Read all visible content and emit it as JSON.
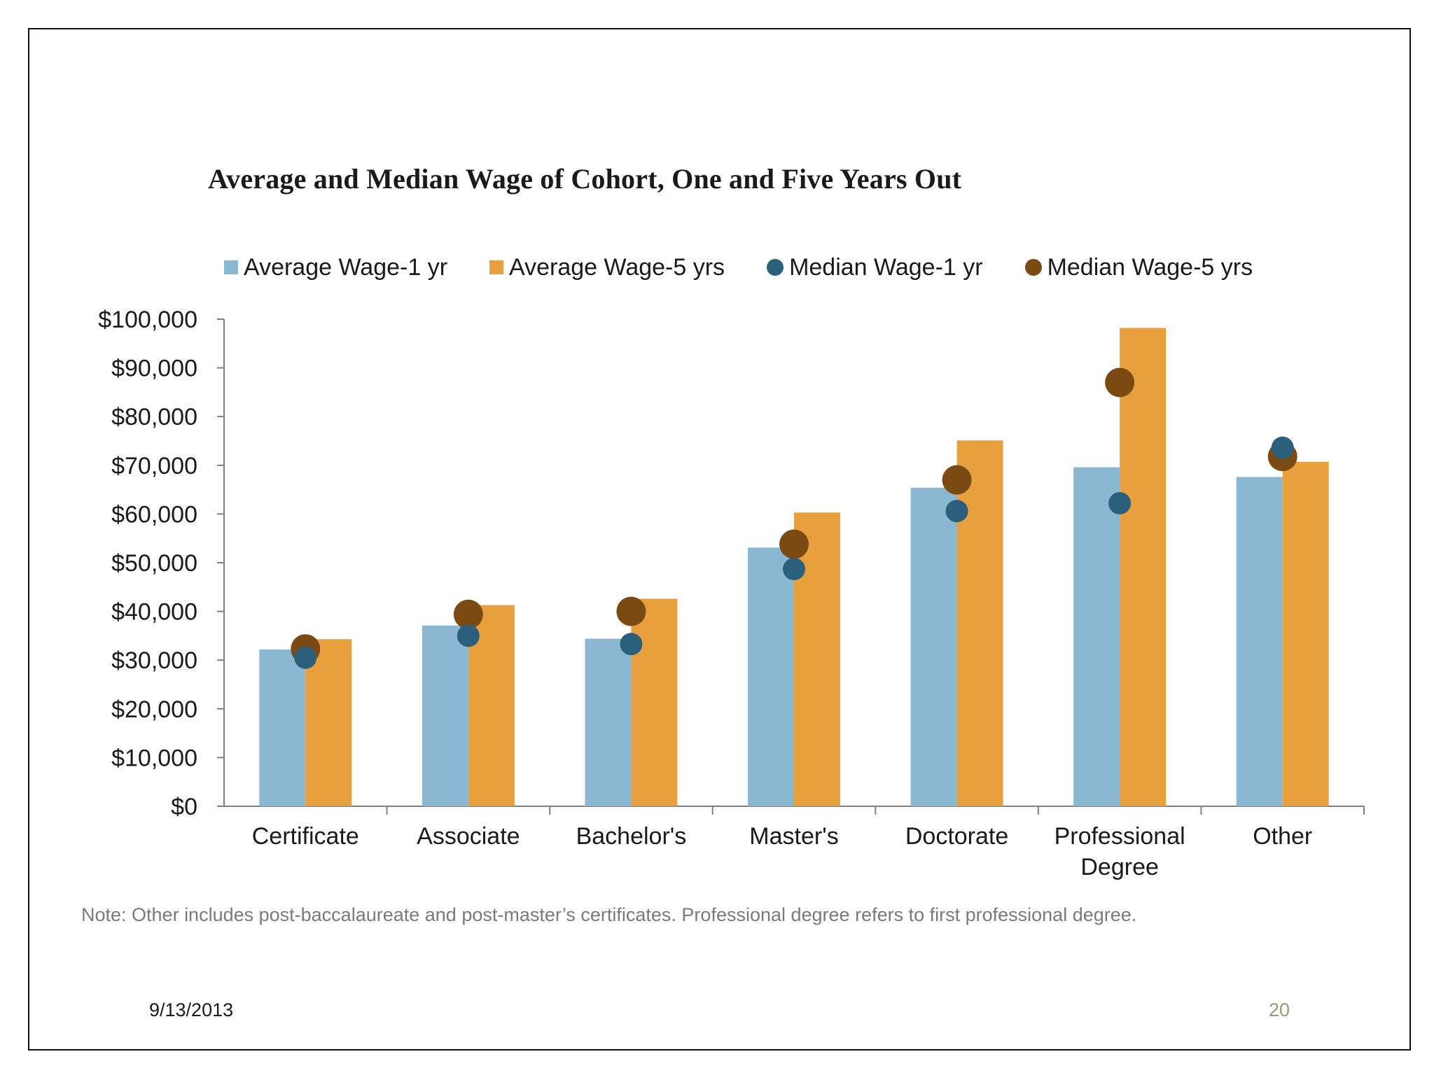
{
  "chart_data": {
    "type": "bar",
    "title": "Average and Median Wage of Cohort, One and Five Years Out",
    "xlabel": "",
    "ylabel": "",
    "ylim": [
      0,
      100000
    ],
    "yticks": [
      0,
      10000,
      20000,
      30000,
      40000,
      50000,
      60000,
      70000,
      80000,
      90000,
      100000
    ],
    "ytick_labels": [
      "$0",
      "$10,000",
      "$20,000",
      "$30,000",
      "$40,000",
      "$50,000",
      "$60,000",
      "$70,000",
      "$80,000",
      "$90,000",
      "$100,000"
    ],
    "categories": [
      [
        "Certificate"
      ],
      [
        "Associate"
      ],
      [
        "Bachelor's"
      ],
      [
        "Master's"
      ],
      [
        "Doctorate"
      ],
      [
        "Professional",
        "Degree"
      ],
      [
        "Other"
      ]
    ],
    "legend_position": "top",
    "series": [
      {
        "name": "Average Wage-1 yr",
        "type": "bar",
        "color": "#8ab8d2",
        "values": [
          32200,
          37100,
          34400,
          53100,
          65400,
          69600,
          67600
        ]
      },
      {
        "name": "Average Wage-5 yrs",
        "type": "bar",
        "color": "#e8a03f",
        "values": [
          34300,
          41300,
          42600,
          60300,
          75100,
          98200,
          70700
        ]
      },
      {
        "name": "Median Wage-1 yr",
        "type": "marker",
        "color": "#2c5f7b",
        "values": [
          30500,
          35000,
          33300,
          48700,
          60600,
          62200,
          73600
        ]
      },
      {
        "name": "Median Wage-5 yrs",
        "type": "marker",
        "color": "#7b4a12",
        "values": [
          32300,
          39400,
          40000,
          53800,
          67000,
          87000,
          71800
        ]
      }
    ]
  },
  "note": "Note: Other includes post-baccalaureate and post-master’s certificates. Professional degree refers to first professional degree.",
  "footer": {
    "date": "9/13/2013",
    "page_number": "20"
  }
}
